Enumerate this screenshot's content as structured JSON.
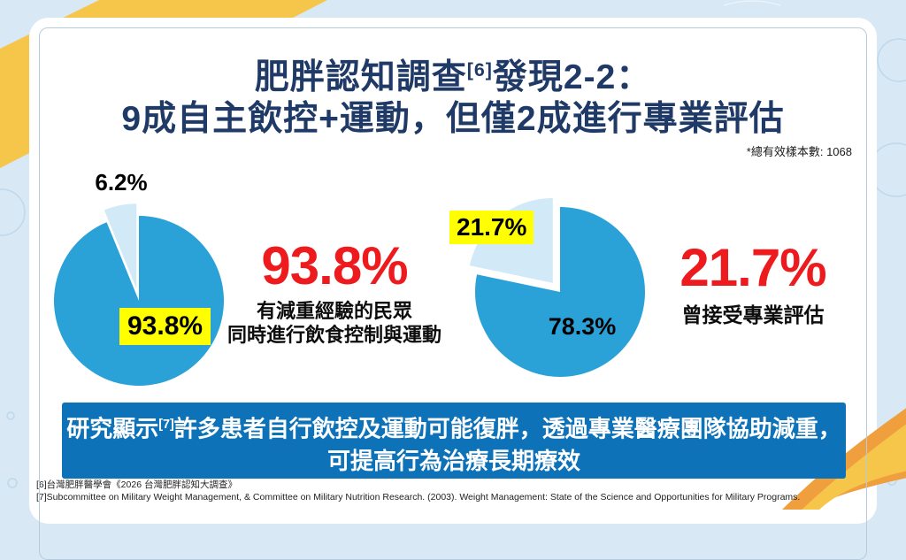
{
  "slide": {
    "title_line1": {
      "pre": "肥胖認知調查",
      "ref": "[6]",
      "post": "發現2-2："
    },
    "title_line2": "9成自主飲控+運動，但僅2成進行專業評估",
    "sample_note": "*總有效樣本數: 1068"
  },
  "left_panel": {
    "stat_value": "93.8%",
    "stat_desc_line1": "有減重經驗的民眾",
    "stat_desc_line2": "同時進行飲食控制與運動"
  },
  "right_panel": {
    "stat_value": "21.7%",
    "stat_desc": "曾接受專業評估"
  },
  "banner": {
    "pre": "研究顯示",
    "ref": "[7]",
    "line1": "許多患者自行飲控及運動可能復胖，透過專業醫療團隊協助減重，",
    "line2": "可提高行為治療長期療效"
  },
  "footnotes": {
    "line1": "[6]台灣肥胖醫學會《2026 台灣肥胖認知大調查》",
    "line2": "[7]Subcommittee on Military Weight Management, & Committee on Military Nutrition Research. (2003). Weight Management: State of the Science and Opportunities for Military Programs."
  },
  "colors": {
    "accent_blue": "#2aa2d8",
    "pale_blue": "#d2e9f7",
    "banner_blue": "#0e72b9",
    "highlight_yellow": "#ffff00",
    "stat_red": "#ed1b1e",
    "title_navy": "#1f3a66",
    "background_blue": "#d9e8f5",
    "deco_yellow": "#f6c64a",
    "deco_orange": "#ef9f3d"
  },
  "chart_data": [
    {
      "type": "pie",
      "name": "diet-and-exercise-pie",
      "slices": [
        {
          "label": "6.2%",
          "value": 6.2,
          "color": "#d2e9f7",
          "explode": 14
        },
        {
          "label": "93.8%",
          "value": 93.8,
          "color": "#2aa2d8",
          "explode": 0
        }
      ],
      "start_angle_deg": 0,
      "direction": "counterclockwise",
      "annotation": "93.8% 有減重經驗的民眾同時進行飲食控制與運動"
    },
    {
      "type": "pie",
      "name": "professional-assessment-pie",
      "slices": [
        {
          "label": "21.7%",
          "value": 21.7,
          "color": "#d2e9f7",
          "explode": 13
        },
        {
          "label": "78.3%",
          "value": 78.3,
          "color": "#2aa2d8",
          "explode": 0
        }
      ],
      "start_angle_deg": 0,
      "direction": "counterclockwise",
      "annotation": "21.7% 曾接受專業評估"
    }
  ]
}
